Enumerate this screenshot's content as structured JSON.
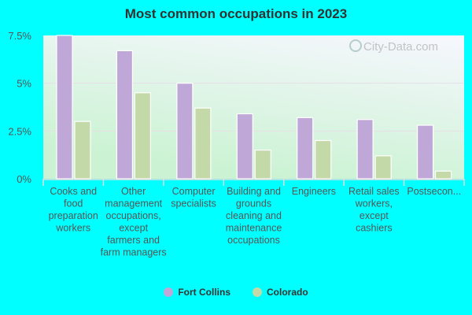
{
  "chart_data": {
    "type": "bar",
    "title": "Most common occupations in 2023",
    "categories": [
      "Cooks and food preparation workers",
      "Other management occupations, except farmers and farm managers",
      "Computer specialists",
      "Building and grounds cleaning and maintenance occupations",
      "Engineers",
      "Retail sales workers, except cashiers",
      "Postsecon..."
    ],
    "series": [
      {
        "name": "Fort Collins",
        "color": "#bfa8d8",
        "values": [
          7.5,
          6.7,
          5.0,
          3.4,
          3.2,
          3.1,
          2.8
        ]
      },
      {
        "name": "Colorado",
        "color": "#c4d9a8",
        "values": [
          3.0,
          4.5,
          3.7,
          1.5,
          2.0,
          1.2,
          0.4
        ]
      }
    ],
    "yticks": [
      "0%",
      "2.5%",
      "5%",
      "7.5%"
    ],
    "ylim": [
      0,
      7.5
    ],
    "grid": true,
    "legend": "bottom",
    "watermark": "City-Data.com"
  }
}
